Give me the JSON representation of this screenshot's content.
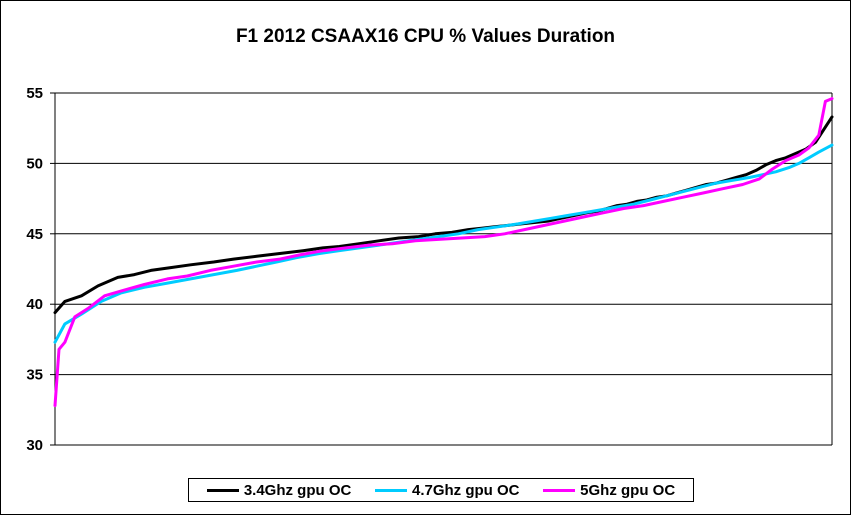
{
  "chart_data": {
    "type": "line",
    "title": "F1 2012 CSAAX16 CPU % Values Duration",
    "xlabel": "",
    "ylabel": "",
    "ylim": [
      30,
      55
    ],
    "yticks": [
      30,
      35,
      40,
      45,
      50,
      55
    ],
    "grid": true,
    "legend_position": "bottom",
    "series": [
      {
        "name": "3.4Ghz gpu OC",
        "color": "#000000",
        "values": [
          39.4,
          40.2,
          40.6,
          41.3,
          41.9,
          42.1,
          42.4,
          42.6,
          42.8,
          43.0,
          43.2,
          43.4,
          43.6,
          43.8,
          44.0,
          44.1,
          44.3,
          44.5,
          44.7,
          44.8,
          45.0,
          45.1,
          45.3,
          45.4,
          45.5,
          45.6,
          45.7,
          45.8,
          45.9,
          46.1,
          46.3,
          46.5,
          46.6,
          46.8,
          47.0,
          47.1,
          47.3,
          47.4,
          47.6,
          47.7,
          47.9,
          48.1,
          48.3,
          48.5,
          48.6,
          48.8,
          49.0,
          49.2,
          49.5,
          49.9,
          50.2,
          50.4,
          50.7,
          51.0,
          51.5,
          53.3
        ],
        "x": [
          0,
          1.5,
          4,
          6.5,
          9.5,
          12,
          14.5,
          17.5,
          20.5,
          24,
          27,
          30.5,
          34,
          37.5,
          40.5,
          43,
          46,
          49,
          52,
          55,
          57.5,
          60,
          62.5,
          64.5,
          66.5,
          68.5,
          70.5,
          72.5,
          74.5,
          76.5,
          78.5,
          80.5,
          82,
          83.5,
          85,
          86.5,
          88,
          89.5,
          91,
          92.5,
          94,
          95.5,
          97,
          98.5,
          100,
          101.5,
          103,
          104.5,
          106,
          107.5,
          109,
          110.5,
          112,
          113.5,
          115,
          117.5
        ]
      },
      {
        "name": "4.7Ghz gpu OC",
        "color": "#00ccff",
        "values": [
          37.3,
          38.6,
          39.3,
          40.2,
          40.8,
          41.2,
          41.5,
          41.8,
          42.1,
          42.4,
          42.7,
          43.0,
          43.3,
          43.6,
          43.8,
          44.0,
          44.2,
          44.4,
          44.6,
          44.8,
          45.0,
          45.3,
          45.5,
          45.7,
          45.9,
          46.1,
          46.3,
          46.5,
          46.7,
          46.9,
          47.1,
          47.4,
          47.7,
          48.0,
          48.3,
          48.6,
          48.8,
          49.0,
          49.2,
          49.4,
          49.7,
          50.0,
          50.4,
          50.8,
          51.3
        ],
        "x": [
          0,
          1.5,
          4,
          7,
          10,
          13.5,
          17,
          20.5,
          24,
          27.5,
          30.5,
          33.5,
          36.5,
          40,
          43,
          46,
          49,
          52,
          55,
          58,
          61,
          64,
          67,
          70,
          72.5,
          75,
          77.5,
          80,
          82.5,
          85,
          87.5,
          90,
          92.5,
          95,
          97.5,
          100,
          102.5,
          105,
          107,
          109,
          111,
          112.5,
          114,
          115.5,
          117.5
        ]
      },
      {
        "name": "5Ghz gpu OC",
        "color": "#ff00ff",
        "values": [
          32.8,
          36.8,
          37.3,
          39.1,
          39.7,
          40.6,
          41.0,
          41.4,
          41.8,
          42.0,
          42.4,
          42.7,
          43.0,
          43.2,
          43.5,
          43.8,
          44.0,
          44.2,
          44.3,
          44.5,
          44.6,
          44.7,
          44.8,
          45.0,
          45.3,
          45.6,
          45.9,
          46.2,
          46.5,
          46.8,
          47.0,
          47.3,
          47.6,
          47.9,
          48.2,
          48.5,
          48.9,
          49.6,
          50.2,
          50.6,
          51.1,
          52.0,
          54.4,
          54.6
        ],
        "x": [
          0,
          0.6,
          1.5,
          3,
          5,
          7.5,
          10.5,
          13.5,
          17,
          20,
          23.5,
          27,
          30.5,
          34,
          37,
          40.5,
          44,
          47.5,
          51,
          54.5,
          58,
          61.5,
          65,
          68,
          71,
          74,
          77,
          80,
          83,
          86,
          89,
          92,
          95,
          98,
          101,
          104,
          106.5,
          108.5,
          110.5,
          112.5,
          114,
          115.5,
          116.5,
          117.5
        ]
      }
    ]
  }
}
